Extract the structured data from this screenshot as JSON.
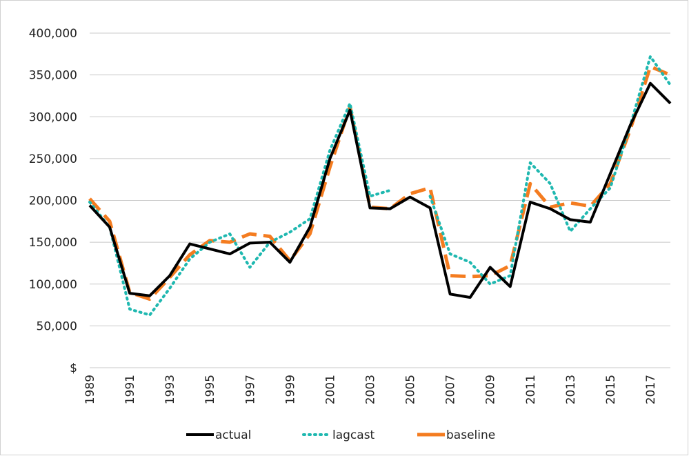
{
  "chart_data": {
    "type": "line",
    "x": [
      1989,
      1990,
      1991,
      1992,
      1993,
      1994,
      1995,
      1996,
      1997,
      1998,
      1999,
      2000,
      2001,
      2002,
      2003,
      2004,
      2005,
      2006,
      2007,
      2008,
      2009,
      2010,
      2011,
      2012,
      2013,
      2014,
      2015,
      2016,
      2017,
      2018
    ],
    "xlim": [
      1989,
      2018
    ],
    "xticks": [
      1989,
      1991,
      1993,
      1995,
      1997,
      1999,
      2001,
      2003,
      2005,
      2007,
      2009,
      2011,
      2013,
      2015,
      2017
    ],
    "ylim": [
      0,
      400000
    ],
    "yticks": [
      {
        "value": 0,
        "label": "$"
      },
      {
        "value": 50000,
        "label": "50,000"
      },
      {
        "value": 100000,
        "label": "100,000"
      },
      {
        "value": 150000,
        "label": "150,000"
      },
      {
        "value": 200000,
        "label": "200,000"
      },
      {
        "value": 250000,
        "label": "250,000"
      },
      {
        "value": 300000,
        "label": "300,000"
      },
      {
        "value": 350000,
        "label": "350,000"
      },
      {
        "value": 400000,
        "label": "400,000"
      }
    ],
    "grid": true,
    "legend": "bottom",
    "series": [
      {
        "name": "actual",
        "color": "#000000",
        "style": "solid",
        "values": [
          194000,
          168000,
          89000,
          86000,
          110000,
          148000,
          142000,
          136000,
          149000,
          150000,
          126000,
          168000,
          250000,
          308000,
          191000,
          190000,
          204000,
          191000,
          88000,
          84000,
          120000,
          97000,
          198000,
          190000,
          177000,
          174000,
          232000,
          290000,
          340000,
          316000
        ]
      },
      {
        "name": "lagcast",
        "color": "#1fb8b0",
        "style": "dotted",
        "values": [
          198000,
          168000,
          70000,
          63000,
          95000,
          130000,
          150000,
          160000,
          120000,
          150000,
          162000,
          178000,
          260000,
          316000,
          205000,
          212000,
          null,
          205000,
          136000,
          126000,
          100000,
          110000,
          245000,
          220000,
          163000,
          190000,
          215000,
          290000,
          372000,
          338000
        ]
      },
      {
        "name": "baseline",
        "color": "#f47c20",
        "style": "dashed",
        "values": [
          202000,
          175000,
          90000,
          82000,
          108000,
          135000,
          152000,
          150000,
          160000,
          157000,
          128000,
          160000,
          240000,
          312000,
          192000,
          190000,
          208000,
          215000,
          110000,
          109000,
          110000,
          122000,
          220000,
          192000,
          197000,
          193000,
          220000,
          285000,
          360000,
          350000
        ]
      }
    ]
  }
}
